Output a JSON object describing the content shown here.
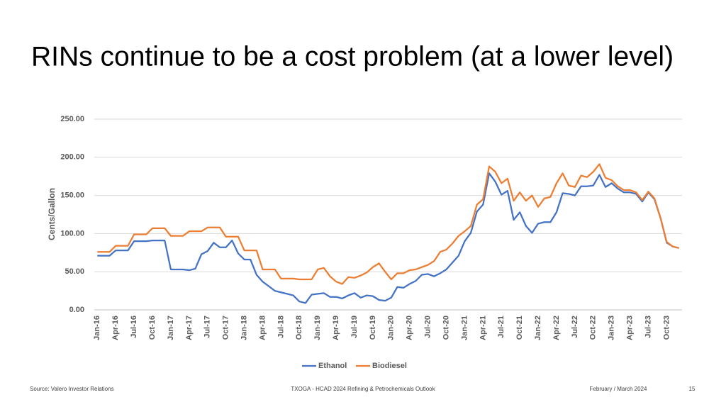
{
  "slide": {
    "title": "RINs continue to be a cost problem (at a lower level)",
    "source": "Source: Valero Investor Relations",
    "center_footer": "TXOGA - HCAD 2024 Refining & Petrochemicals Outlook",
    "date": "February / March 2024",
    "page_number": "15"
  },
  "chart_data": {
    "type": "line",
    "y_label": "Cents/Gallon",
    "categories": [
      "Jan-16",
      null,
      null,
      "Apr-16",
      null,
      null,
      "Jul-16",
      null,
      null,
      "Oct-16",
      null,
      null,
      "Jan-17",
      null,
      null,
      "Apr-17",
      null,
      null,
      "Jul-17",
      null,
      null,
      "Oct-17",
      null,
      null,
      "Jan-18",
      null,
      null,
      "Apr-18",
      null,
      null,
      "Jul-18",
      null,
      null,
      "Oct-18",
      null,
      null,
      "Jan-19",
      null,
      null,
      "Apr-19",
      null,
      null,
      "Jul-19",
      null,
      null,
      "Oct-19",
      null,
      null,
      "Jan-20",
      null,
      null,
      "Apr-20",
      null,
      null,
      "Jul-20",
      null,
      null,
      "Oct-20",
      null,
      null,
      "Jan-21",
      null,
      null,
      "Apr-21",
      null,
      null,
      "Jul-21",
      null,
      null,
      "Oct-21",
      null,
      null,
      "Jan-22",
      null,
      null,
      "Apr-22",
      null,
      null,
      "Jul-22",
      null,
      null,
      "Oct-22",
      null,
      null,
      "Jan-23",
      null,
      null,
      "Apr-23",
      null,
      null,
      "Jul-23",
      null,
      null,
      "Oct-23",
      null,
      null
    ],
    "series": [
      {
        "name": "Ethanol",
        "color": "#4472c4",
        "values": [
          71,
          71,
          71,
          78,
          78,
          78,
          90,
          90,
          90,
          91,
          91,
          91,
          53,
          53,
          53,
          52,
          54,
          73,
          77,
          88,
          82,
          82,
          91,
          74,
          66,
          66,
          46,
          37,
          31,
          25,
          23,
          21,
          19,
          11,
          9,
          20,
          21,
          22,
          17,
          17,
          15,
          19,
          22,
          16,
          19,
          18,
          13,
          12,
          16,
          30,
          29,
          34,
          38,
          46,
          47,
          44,
          48,
          53,
          62,
          71,
          90,
          101,
          129,
          138,
          179,
          168,
          151,
          156,
          118,
          128,
          110,
          101,
          113,
          115,
          115,
          128,
          153,
          152,
          150,
          162,
          162,
          163,
          177,
          161,
          166,
          159,
          154,
          154,
          152,
          142,
          154,
          145,
          120,
          88,
          83,
          81
        ]
      },
      {
        "name": "Biodiesel",
        "color": "#ed7d31",
        "values": [
          76,
          76,
          76,
          84,
          84,
          84,
          99,
          99,
          99,
          107,
          107,
          107,
          97,
          97,
          97,
          103,
          103,
          103,
          108,
          108,
          108,
          96,
          96,
          96,
          78,
          78,
          78,
          53,
          53,
          53,
          41,
          41,
          41,
          40,
          40,
          40,
          53,
          55,
          44,
          37,
          34,
          43,
          42,
          45,
          49,
          56,
          61,
          50,
          40,
          48,
          48,
          52,
          53,
          56,
          59,
          64,
          76,
          79,
          87,
          97,
          103,
          110,
          138,
          145,
          188,
          181,
          166,
          172,
          143,
          154,
          143,
          150,
          135,
          146,
          148,
          166,
          179,
          163,
          161,
          176,
          174,
          181,
          191,
          173,
          170,
          162,
          157,
          157,
          154,
          144,
          155,
          146,
          120,
          89,
          83,
          81
        ]
      }
    ],
    "ylim": [
      0,
      250
    ],
    "yticks": [
      {
        "value": 0,
        "label": "0.00"
      },
      {
        "value": 50,
        "label": "50.00"
      },
      {
        "value": 100,
        "label": "100.00"
      },
      {
        "value": 150,
        "label": "150.00"
      },
      {
        "value": 200,
        "label": "200.00"
      },
      {
        "value": 250,
        "label": "250.00"
      }
    ],
    "grid": true,
    "legend": "bottom"
  }
}
